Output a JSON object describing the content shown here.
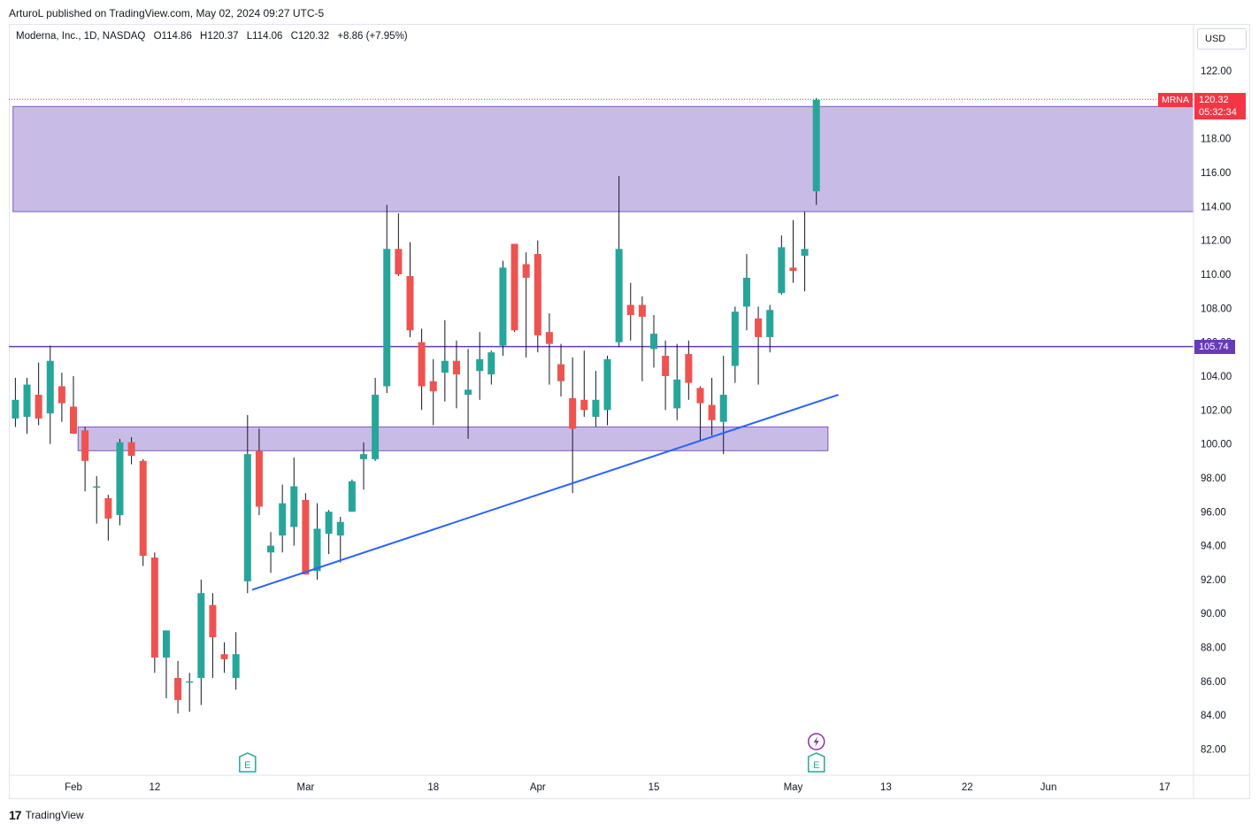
{
  "header": {
    "publisher": "ArturoL published on TradingView.com, May 02, 2024 09:27 UTC-5"
  },
  "symbol": {
    "name": "Moderna, Inc., 1D, NASDAQ",
    "open": "O114.86",
    "high": "H120.37",
    "low": "L114.06",
    "close": "C120.32",
    "change": "+8.86 (+7.95%)"
  },
  "currency": "USD",
  "tags": {
    "ticker": "MRNA",
    "last_price": "120.32",
    "countdown": "05:32:34",
    "level": "105.74"
  },
  "footer": {
    "brand": "TradingView",
    "logo_glyph": "17"
  },
  "colors": {
    "up": "#26a69a",
    "down": "#ef5350",
    "zone": "#c5b8e6",
    "zone_border": "#7e57c2",
    "level_line": "#673ab7",
    "trendline": "#2962ff",
    "tag": "#f23645"
  },
  "chart_data": {
    "type": "candlestick",
    "ylim": [
      80.5,
      123.5
    ],
    "y_ticks": [
      "122.00",
      "120.00",
      "118.00",
      "116.00",
      "114.00",
      "112.00",
      "110.00",
      "108.00",
      "106.00",
      "104.00",
      "102.00",
      "100.00",
      "98.00",
      "96.00",
      "94.00",
      "92.00",
      "90.00",
      "88.00",
      "86.00",
      "84.00",
      "82.00"
    ],
    "x_ticks": [
      {
        "label": "Feb",
        "day": 0
      },
      {
        "label": "12",
        "day": 7
      },
      {
        "label": "Mar",
        "day": 20
      },
      {
        "label": "18",
        "day": 31
      },
      {
        "label": "Apr",
        "day": 40
      },
      {
        "label": "15",
        "day": 50
      },
      {
        "label": "May",
        "day": 62
      },
      {
        "label": "13",
        "day": 70
      },
      {
        "label": "22",
        "day": 77
      },
      {
        "label": "Jun",
        "day": 84
      },
      {
        "label": "17",
        "day": 94
      }
    ],
    "candles": [
      {
        "day": -5,
        "o": 101.5,
        "h": 103.9,
        "l": 101.0,
        "c": 102.6
      },
      {
        "day": -4,
        "o": 101.6,
        "h": 103.9,
        "l": 100.6,
        "c": 103.5
      },
      {
        "day": -3,
        "o": 102.9,
        "h": 104.8,
        "l": 101.1,
        "c": 101.5
      },
      {
        "day": -2,
        "o": 101.8,
        "h": 105.8,
        "l": 100.0,
        "c": 104.9
      },
      {
        "day": -1,
        "o": 103.4,
        "h": 104.2,
        "l": 101.3,
        "c": 102.4
      },
      {
        "day": 0,
        "o": 102.2,
        "h": 104.0,
        "l": 100.6,
        "c": 100.6
      },
      {
        "day": 1,
        "o": 100.8,
        "h": 101.0,
        "l": 97.2,
        "c": 99.0
      },
      {
        "day": 2,
        "o": 97.5,
        "h": 98.1,
        "l": 95.3,
        "c": 97.5
      },
      {
        "day": 3,
        "o": 96.8,
        "h": 97.0,
        "l": 94.3,
        "c": 95.6
      },
      {
        "day": 4,
        "o": 95.8,
        "h": 100.3,
        "l": 95.2,
        "c": 100.1
      },
      {
        "day": 5,
        "o": 100.1,
        "h": 100.4,
        "l": 98.8,
        "c": 99.3
      },
      {
        "day": 6,
        "o": 99.0,
        "h": 99.1,
        "l": 92.8,
        "c": 93.4
      },
      {
        "day": 7,
        "o": 93.3,
        "h": 93.6,
        "l": 86.5,
        "c": 87.4
      },
      {
        "day": 8,
        "o": 87.4,
        "h": 89.0,
        "l": 85.0,
        "c": 89.0
      },
      {
        "day": 9,
        "o": 86.2,
        "h": 87.2,
        "l": 84.1,
        "c": 84.9
      },
      {
        "day": 10,
        "o": 86.0,
        "h": 86.5,
        "l": 84.2,
        "c": 86.0
      },
      {
        "day": 11,
        "o": 86.2,
        "h": 92.0,
        "l": 84.6,
        "c": 91.2
      },
      {
        "day": 12,
        "o": 90.5,
        "h": 91.2,
        "l": 86.2,
        "c": 88.6
      },
      {
        "day": 13,
        "o": 87.6,
        "h": 88.3,
        "l": 86.5,
        "c": 87.3
      },
      {
        "day": 14,
        "o": 86.2,
        "h": 88.9,
        "l": 85.5,
        "c": 87.6
      },
      {
        "day": 15,
        "o": 91.9,
        "h": 101.7,
        "l": 91.2,
        "c": 99.4
      },
      {
        "day": 16,
        "o": 99.6,
        "h": 100.9,
        "l": 95.8,
        "c": 96.3
      },
      {
        "day": 17,
        "o": 93.6,
        "h": 94.8,
        "l": 92.4,
        "c": 94.0
      },
      {
        "day": 18,
        "o": 94.6,
        "h": 97.6,
        "l": 93.6,
        "c": 96.5
      },
      {
        "day": 19,
        "o": 95.1,
        "h": 99.2,
        "l": 94.0,
        "c": 97.5
      },
      {
        "day": 20,
        "o": 96.7,
        "h": 97.1,
        "l": 92.3,
        "c": 92.3
      },
      {
        "day": 21,
        "o": 92.5,
        "h": 96.5,
        "l": 92.0,
        "c": 95.0
      },
      {
        "day": 22,
        "o": 94.7,
        "h": 96.1,
        "l": 93.5,
        "c": 96.0
      },
      {
        "day": 23,
        "o": 94.6,
        "h": 95.7,
        "l": 93.0,
        "c": 95.4
      },
      {
        "day": 24,
        "o": 96.0,
        "h": 97.9,
        "l": 96.0,
        "c": 97.8
      },
      {
        "day": 25,
        "o": 99.1,
        "h": 100.1,
        "l": 97.3,
        "c": 99.4
      },
      {
        "day": 26,
        "o": 99.1,
        "h": 103.9,
        "l": 99.0,
        "c": 102.9
      },
      {
        "day": 27,
        "o": 103.4,
        "h": 114.1,
        "l": 103.0,
        "c": 111.5
      },
      {
        "day": 28,
        "o": 111.5,
        "h": 113.6,
        "l": 109.9,
        "c": 110.0
      },
      {
        "day": 29,
        "o": 109.9,
        "h": 111.9,
        "l": 106.3,
        "c": 106.7
      },
      {
        "day": 30,
        "o": 106.0,
        "h": 106.8,
        "l": 102.0,
        "c": 103.4
      },
      {
        "day": 31,
        "o": 103.7,
        "h": 105.0,
        "l": 101.1,
        "c": 103.1
      },
      {
        "day": 32,
        "o": 104.2,
        "h": 107.3,
        "l": 102.5,
        "c": 104.9
      },
      {
        "day": 33,
        "o": 104.9,
        "h": 106.1,
        "l": 102.1,
        "c": 104.1
      },
      {
        "day": 34,
        "o": 102.9,
        "h": 105.6,
        "l": 100.3,
        "c": 103.2
      },
      {
        "day": 35,
        "o": 104.3,
        "h": 106.6,
        "l": 102.6,
        "c": 105.0
      },
      {
        "day": 36,
        "o": 104.1,
        "h": 105.5,
        "l": 103.5,
        "c": 105.4
      },
      {
        "day": 37,
        "o": 105.8,
        "h": 110.8,
        "l": 105.2,
        "c": 110.4
      },
      {
        "day": 38,
        "o": 111.8,
        "h": 111.8,
        "l": 106.6,
        "c": 106.7
      },
      {
        "day": 39,
        "o": 110.6,
        "h": 111.3,
        "l": 105.1,
        "c": 109.8
      },
      {
        "day": 40,
        "o": 111.2,
        "h": 112.0,
        "l": 105.4,
        "c": 106.4
      },
      {
        "day": 41,
        "o": 106.6,
        "h": 107.7,
        "l": 103.5,
        "c": 105.9
      },
      {
        "day": 42,
        "o": 104.7,
        "h": 105.9,
        "l": 102.8,
        "c": 103.7
      },
      {
        "day": 43,
        "o": 102.7,
        "h": 105.1,
        "l": 97.1,
        "c": 100.9
      },
      {
        "day": 44,
        "o": 102.6,
        "h": 105.5,
        "l": 101.6,
        "c": 102.0
      },
      {
        "day": 45,
        "o": 101.6,
        "h": 104.3,
        "l": 101.0,
        "c": 102.6
      },
      {
        "day": 46,
        "o": 102.0,
        "h": 105.2,
        "l": 101.1,
        "c": 105.0
      },
      {
        "day": 47,
        "o": 106.0,
        "h": 115.8,
        "l": 105.7,
        "c": 111.5
      },
      {
        "day": 48,
        "o": 108.2,
        "h": 109.5,
        "l": 106.1,
        "c": 107.6
      },
      {
        "day": 49,
        "o": 108.2,
        "h": 108.7,
        "l": 103.7,
        "c": 107.5
      },
      {
        "day": 50,
        "o": 105.6,
        "h": 107.6,
        "l": 104.5,
        "c": 106.5
      },
      {
        "day": 51,
        "o": 105.2,
        "h": 106.1,
        "l": 102.0,
        "c": 104.0
      },
      {
        "day": 52,
        "o": 102.1,
        "h": 105.9,
        "l": 101.4,
        "c": 103.8
      },
      {
        "day": 53,
        "o": 105.3,
        "h": 106.1,
        "l": 102.6,
        "c": 103.6
      },
      {
        "day": 54,
        "o": 103.3,
        "h": 103.4,
        "l": 100.2,
        "c": 102.4
      },
      {
        "day": 55,
        "o": 102.3,
        "h": 103.9,
        "l": 100.5,
        "c": 101.4
      },
      {
        "day": 56,
        "o": 101.3,
        "h": 105.2,
        "l": 99.4,
        "c": 102.9
      },
      {
        "day": 57,
        "o": 104.6,
        "h": 108.1,
        "l": 103.6,
        "c": 107.8
      },
      {
        "day": 58,
        "o": 108.1,
        "h": 111.2,
        "l": 106.7,
        "c": 109.8
      },
      {
        "day": 59,
        "o": 107.4,
        "h": 108.1,
        "l": 103.5,
        "c": 106.3
      },
      {
        "day": 60,
        "o": 106.3,
        "h": 108.2,
        "l": 105.4,
        "c": 107.9
      },
      {
        "day": 61,
        "o": 108.9,
        "h": 112.3,
        "l": 108.8,
        "c": 111.6
      },
      {
        "day": 62,
        "o": 110.4,
        "h": 113.2,
        "l": 109.5,
        "c": 110.2
      },
      {
        "day": 63,
        "o": 111.1,
        "h": 113.7,
        "l": 109.0,
        "c": 111.5
      },
      {
        "day": 64,
        "o": 114.9,
        "h": 120.4,
        "l": 114.1,
        "c": 120.3
      }
    ],
    "zones": [
      {
        "day_from": -5.2,
        "day_to": 99.0,
        "price_low": 113.7,
        "price_high": 119.9
      },
      {
        "day_from": 0.4,
        "day_to": 65.0,
        "price_low": 99.6,
        "price_high": 101.0
      }
    ],
    "horizontal_levels": [
      {
        "price": 105.74
      }
    ],
    "trendlines": [
      {
        "from": {
          "day": 15.4,
          "price": 91.4
        },
        "to": {
          "day": 65.9,
          "price": 102.9
        }
      }
    ],
    "last_price_line": 120.32,
    "markers": [
      {
        "type": "earnings",
        "day": 15.0,
        "label": "E"
      },
      {
        "type": "earnings",
        "day": 64.0,
        "label": "E"
      },
      {
        "type": "dividend-bolt",
        "day": 64.0
      }
    ]
  }
}
